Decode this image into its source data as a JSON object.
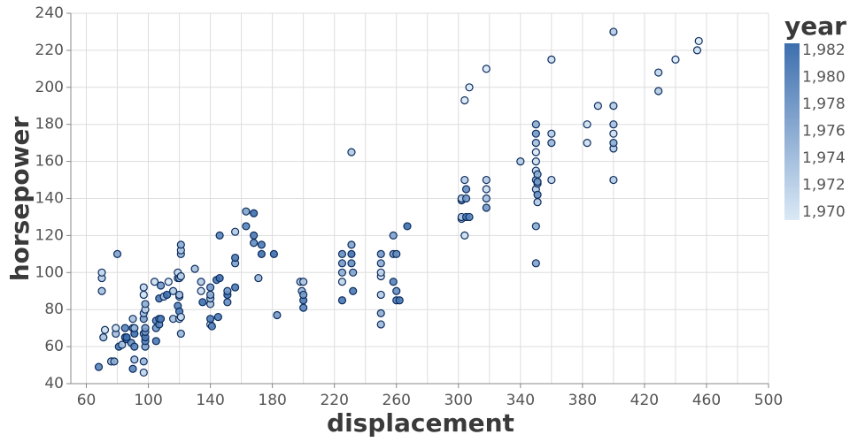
{
  "chart_data": {
    "type": "scatter",
    "x_label": "displacement",
    "y_label": "horsepower",
    "legend_title": "year",
    "xlim": [
      50,
      500
    ],
    "xticks": [
      60,
      100,
      140,
      180,
      220,
      260,
      300,
      340,
      380,
      420,
      460,
      500
    ],
    "ylim": [
      40,
      240
    ],
    "yticks": [
      40,
      60,
      80,
      100,
      120,
      140,
      160,
      180,
      200,
      220,
      240
    ],
    "grid": true,
    "color_domain": [
      1970,
      1982
    ],
    "color_range": [
      "#dbe9f6",
      "#3d6fae"
    ],
    "legend_ticks": [
      {
        "value": 1970,
        "label": "1,970"
      },
      {
        "value": 1972,
        "label": "1,972"
      },
      {
        "value": 1974,
        "label": "1,974"
      },
      {
        "value": 1976,
        "label": "1,976"
      },
      {
        "value": 1978,
        "label": "1,978"
      },
      {
        "value": 1980,
        "label": "1,980"
      },
      {
        "value": 1982,
        "label": "1,982"
      }
    ],
    "x": [
      68,
      70,
      70,
      70,
      71,
      72,
      76,
      78,
      79,
      79,
      80,
      81,
      83,
      85,
      85,
      86,
      86,
      89,
      90,
      90,
      90,
      91,
      91,
      91,
      91,
      97,
      97,
      97,
      97,
      97,
      97,
      97,
      98,
      98,
      98,
      98,
      98,
      98,
      98,
      104,
      105,
      105,
      105,
      107,
      107,
      107,
      108,
      108,
      110,
      112,
      113,
      116,
      116,
      119,
      119,
      119,
      120,
      120,
      120,
      120,
      120,
      121,
      121,
      121,
      121,
      121,
      121,
      130,
      134,
      134,
      135,
      140,
      140,
      140,
      140,
      140,
      140,
      141,
      144,
      145,
      146,
      146,
      151,
      151,
      151,
      156,
      156,
      156,
      156,
      163,
      163,
      168,
      168,
      168,
      171,
      173,
      173,
      181,
      183,
      198,
      199,
      200,
      200,
      200,
      200,
      225,
      225,
      225,
      225,
      225,
      231,
      231,
      231,
      231,
      232,
      232,
      250,
      250,
      250,
      250,
      250,
      250,
      250,
      258,
      258,
      258,
      260,
      260,
      260,
      262,
      267,
      302,
      302,
      302,
      302,
      304,
      304,
      305,
      305,
      305,
      307,
      318,
      318,
      318,
      318,
      318,
      340,
      350,
      350,
      350,
      350,
      350,
      350,
      350,
      350,
      350,
      350,
      351,
      351,
      351,
      351,
      351,
      360,
      360,
      360,
      360,
      383,
      383,
      390,
      400,
      400,
      400,
      400,
      400,
      400,
      400,
      429,
      429,
      440,
      454,
      455,
      304,
      307
    ],
    "values": [
      49,
      97,
      100,
      90,
      65,
      69,
      52,
      52,
      67,
      70,
      110,
      60,
      61,
      65,
      70,
      64,
      65,
      62,
      48,
      70,
      75,
      53,
      60,
      67,
      70,
      46,
      52,
      67,
      75,
      78,
      88,
      92,
      60,
      63,
      65,
      68,
      70,
      80,
      83,
      95,
      63,
      70,
      74,
      72,
      75,
      86,
      75,
      93,
      87,
      88,
      95,
      75,
      90,
      82,
      97,
      100,
      75,
      79,
      87,
      88,
      97,
      67,
      76,
      98,
      110,
      112,
      115,
      102,
      90,
      95,
      84,
      72,
      75,
      83,
      86,
      88,
      92,
      71,
      96,
      76,
      97,
      120,
      84,
      88,
      90,
      92,
      105,
      108,
      122,
      125,
      133,
      116,
      120,
      132,
      97,
      110,
      115,
      110,
      77,
      95,
      90,
      81,
      85,
      88,
      95,
      85,
      95,
      100,
      105,
      110,
      105,
      110,
      115,
      165,
      90,
      100,
      72,
      78,
      88,
      98,
      100,
      105,
      110,
      95,
      110,
      120,
      85,
      90,
      110,
      85,
      125,
      129,
      130,
      139,
      140,
      120,
      150,
      130,
      140,
      145,
      130,
      135,
      140,
      145,
      150,
      210,
      160,
      105,
      125,
      145,
      150,
      155,
      160,
      165,
      170,
      175,
      180,
      138,
      142,
      148,
      149,
      153,
      150,
      170,
      175,
      215,
      170,
      180,
      190,
      150,
      167,
      170,
      175,
      180,
      190,
      230,
      198,
      208,
      215,
      220,
      225,
      193,
      200
    ],
    "years": [
      1980,
      1973,
      1972,
      1974,
      1974,
      1971,
      1974,
      1976,
      1974,
      1971,
      1977,
      1981,
      1974,
      1979,
      1980,
      1981,
      1982,
      1979,
      1980,
      1975,
      1974,
      1974,
      1980,
      1982,
      1975,
      1972,
      1975,
      1977,
      1977,
      1974,
      1971,
      1972,
      1977,
      1980,
      1981,
      1978,
      1977,
      1972,
      1976,
      1971,
      1981,
      1978,
      1980,
      1980,
      1978,
      1981,
      1981,
      1978,
      1974,
      1982,
      1970,
      1974,
      1973,
      1980,
      1973,
      1972,
      1972,
      1981,
      1975,
      1974,
      1976,
      1975,
      1971,
      1972,
      1975,
      1973,
      1976,
      1974,
      1971,
      1973,
      1982,
      1971,
      1981,
      1974,
      1974,
      1976,
      1978,
      1980,
      1981,
      1981,
      1982,
      1980,
      1979,
      1982,
      1978,
      1981,
      1977,
      1981,
      1973,
      1980,
      1977,
      1979,
      1981,
      1982,
      1975,
      1982,
      1981,
      1982,
      1978,
      1974,
      1975,
      1980,
      1981,
      1978,
      1973,
      1981,
      1972,
      1976,
      1978,
      1979,
      1979,
      1982,
      1977,
      1973,
      1981,
      1977,
      1975,
      1976,
      1973,
      1971,
      1972,
      1976,
      1978,
      1980,
      1978,
      1977,
      1980,
      1979,
      1979,
      1981,
      1982,
      1976,
      1973,
      1979,
      1972,
      1971,
      1973,
      1981,
      1978,
      1979,
      1980,
      1978,
      1974,
      1971,
      1973,
      1970,
      1973,
      1977,
      1976,
      1973,
      1975,
      1972,
      1971,
      1970,
      1974,
      1978,
      1976,
      1973,
      1979,
      1975,
      1978,
      1976,
      1972,
      1975,
      1973,
      1971,
      1971,
      1971,
      1972,
      1973,
      1973,
      1976,
      1971,
      1974,
      1973,
      1973,
      1973,
      1972,
      1970,
      1971,
      1970,
      1970,
      1970
    ]
  }
}
